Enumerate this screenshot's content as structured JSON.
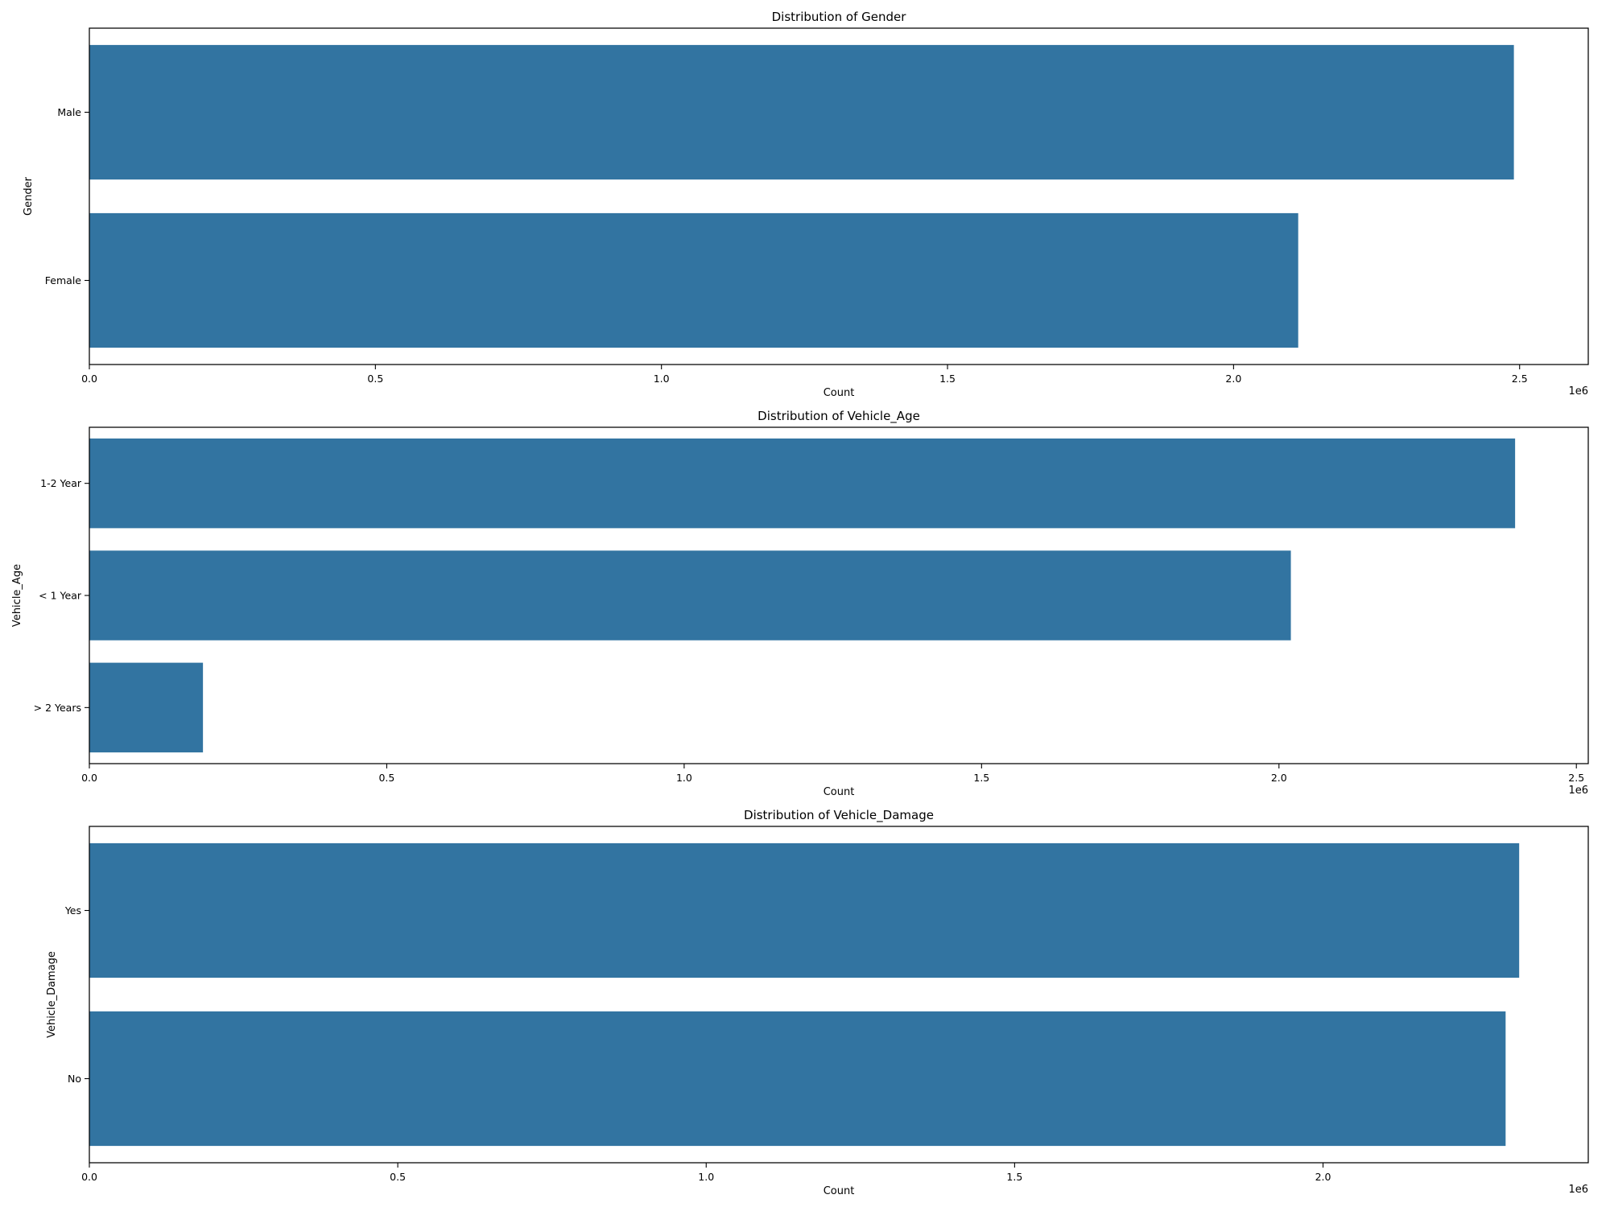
{
  "bar_color": "#3274a1",
  "chart_data": [
    {
      "type": "bar",
      "orientation": "horizontal",
      "title": "Distribution of Gender",
      "xlabel": "Count",
      "ylabel": "Gender",
      "x_offset_label": "1e6",
      "categories": [
        "Male",
        "Female"
      ],
      "values": [
        2490000,
        2113000
      ],
      "xlim": [
        0,
        2620000
      ],
      "xticks": [
        0,
        500000,
        1000000,
        1500000,
        2000000,
        2500000
      ],
      "xtick_labels": [
        "0.0",
        "0.5",
        "1.0",
        "1.5",
        "2.0",
        "2.5"
      ],
      "grid": false
    },
    {
      "type": "bar",
      "orientation": "horizontal",
      "title": "Distribution of Vehicle_Age",
      "xlabel": "Count",
      "ylabel": "Vehicle_Age",
      "x_offset_label": "1e6",
      "categories": [
        "1-2 Year",
        "< 1 Year",
        "> 2 Years"
      ],
      "values": [
        2397000,
        2020000,
        191000
      ],
      "xlim": [
        0,
        2520000
      ],
      "xticks": [
        0,
        500000,
        1000000,
        1500000,
        2000000,
        2500000
      ],
      "xtick_labels": [
        "0.0",
        "0.5",
        "1.0",
        "1.5",
        "2.0",
        "2.5"
      ],
      "grid": false
    },
    {
      "type": "bar",
      "orientation": "horizontal",
      "title": "Distribution of Vehicle_Damage",
      "xlabel": "Count",
      "ylabel": "Vehicle_Damage",
      "x_offset_label": "1e6",
      "categories": [
        "Yes",
        "No"
      ],
      "values": [
        2318000,
        2296000
      ],
      "xlim": [
        0,
        2430000
      ],
      "xticks": [
        0,
        500000,
        1000000,
        1500000,
        2000000
      ],
      "xtick_labels": [
        "0.0",
        "0.5",
        "1.0",
        "1.5",
        "2.0"
      ],
      "grid": false
    }
  ]
}
